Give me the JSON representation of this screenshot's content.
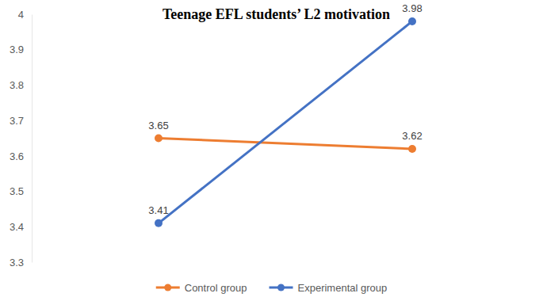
{
  "chart_data": {
    "type": "line",
    "title": "Teenage EFL students’ L2 motivation",
    "categories": [
      null,
      null
    ],
    "series": [
      {
        "name": "Control group",
        "color": "#ed7d31",
        "values": [
          3.65,
          3.62
        ]
      },
      {
        "name": "Experimental group",
        "color": "#4472c4",
        "values": [
          3.41,
          3.98
        ]
      }
    ],
    "ylim": [
      3.3,
      4
    ],
    "yticks": [
      3.3,
      3.4,
      3.5,
      3.6,
      3.7,
      3.8,
      3.9,
      4
    ],
    "grid": false,
    "legend": "bottom",
    "data_labels": true,
    "marker": "circle",
    "tick_labels": "y"
  }
}
